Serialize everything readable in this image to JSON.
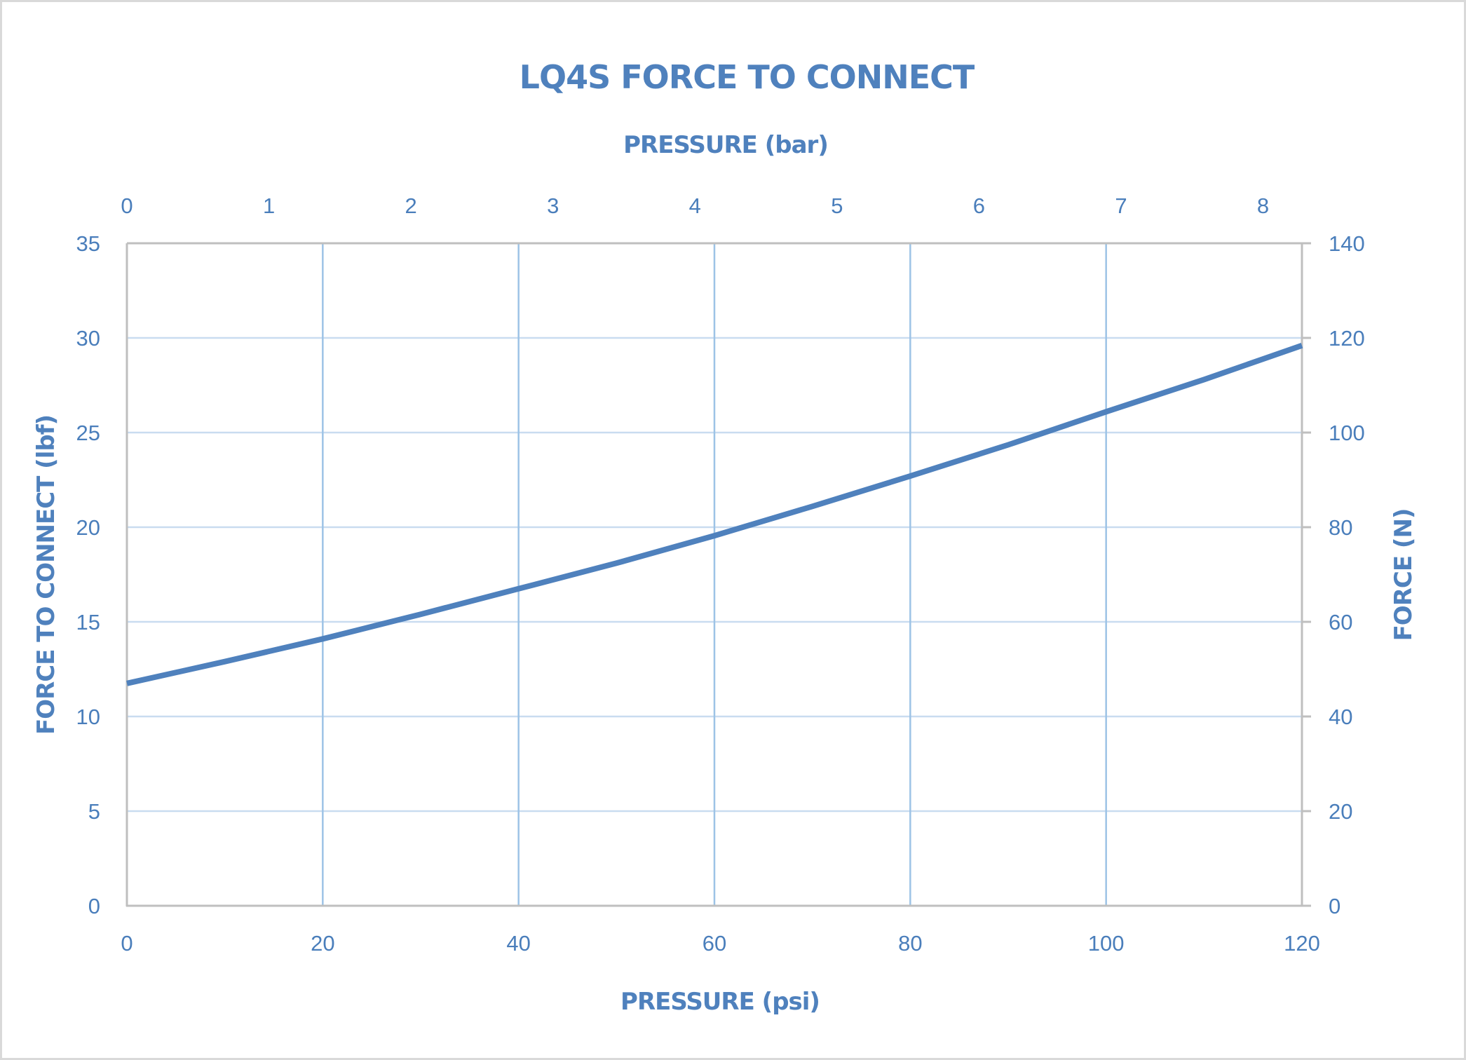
{
  "chart_data": {
    "type": "line",
    "title": "LQ4S FORCE TO CONNECT",
    "xlabel": "PRESSURE (psi)",
    "x2label": "PRESSURE (bar)",
    "ylabel": "FORCE TO CONNECT (lbf)",
    "y2label": "FORCE (N)",
    "xlim": [
      0,
      120
    ],
    "x2lim": [
      0,
      8.2737
    ],
    "ylim": [
      0,
      35
    ],
    "y2lim": [
      0,
      140
    ],
    "x_ticks": [
      0,
      20,
      40,
      60,
      80,
      100,
      120
    ],
    "x2_ticks": [
      0,
      1,
      2,
      3,
      4,
      5,
      6,
      7,
      8
    ],
    "y_ticks": [
      0,
      5,
      10,
      15,
      20,
      25,
      30,
      35
    ],
    "y2_ticks": [
      0,
      20,
      40,
      60,
      80,
      100,
      120,
      140
    ],
    "grid": true,
    "legend": null,
    "series": [
      {
        "name": "Force to connect",
        "color": "#4f81bd",
        "x": [
          0,
          10,
          20,
          30,
          40,
          50,
          60,
          70,
          80,
          90,
          100,
          110,
          120
        ],
        "values": [
          11.75,
          12.9,
          14.1,
          15.4,
          16.75,
          18.1,
          19.55,
          21.1,
          22.7,
          24.35,
          26.1,
          27.8,
          29.6
        ]
      }
    ]
  },
  "colors": {
    "text": "#4a7ebb",
    "line": "#4f81bd",
    "vgrid": "#9dc3e6",
    "hgrid": "#c9dcf0",
    "axis": "#bfbfbf",
    "border": "#d9d9d9"
  }
}
